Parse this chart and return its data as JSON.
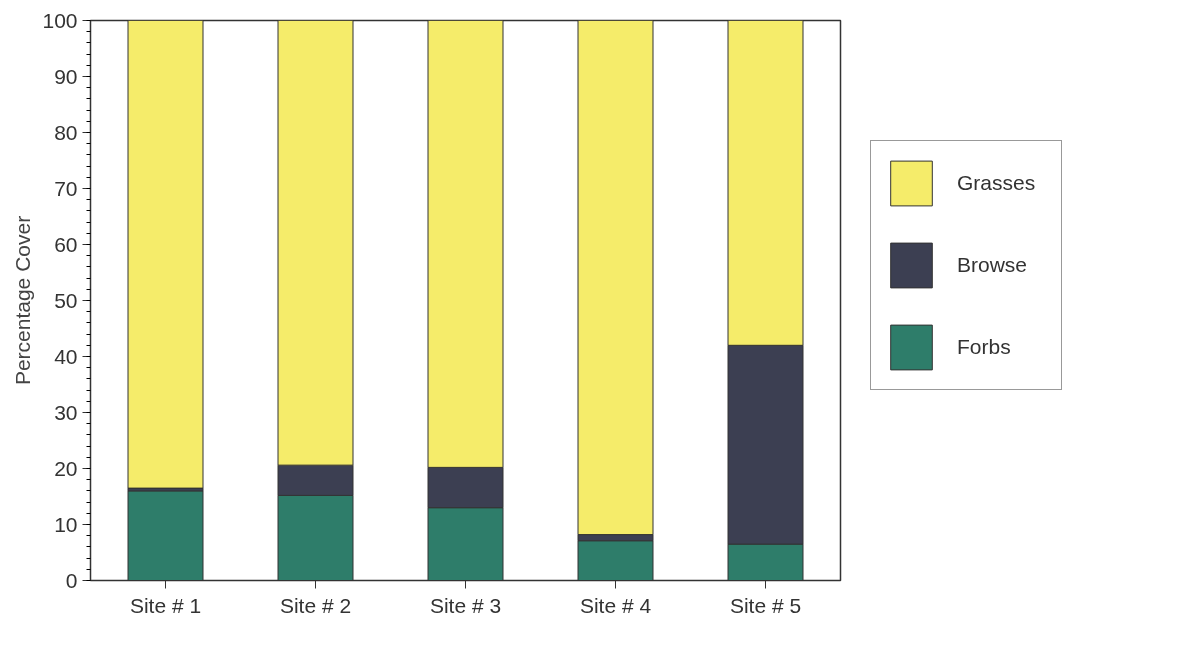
{
  "chart_data": {
    "type": "bar",
    "stacked": true,
    "ylabel": "Percentage Cover",
    "categories": [
      "Site # 1",
      "Site # 2",
      "Site # 3",
      "Site # 4",
      "Site # 5"
    ],
    "series": [
      {
        "name": "Forbs",
        "color": "#2e7d6a",
        "values": [
          16,
          15.2,
          13,
          7.1,
          6.5
        ]
      },
      {
        "name": "Browse",
        "color": "#3c3f52",
        "values": [
          0.5,
          5.4,
          7.2,
          1.1,
          35.5
        ]
      },
      {
        "name": "Grasses",
        "color": "#f5ec6a",
        "values": [
          83.5,
          79.4,
          79.8,
          91.8,
          58
        ]
      }
    ],
    "ylim": [
      0,
      100
    ],
    "yticks": [
      0,
      10,
      20,
      30,
      40,
      50,
      60,
      70,
      80,
      90,
      100
    ],
    "grid": false,
    "legend": "right"
  }
}
